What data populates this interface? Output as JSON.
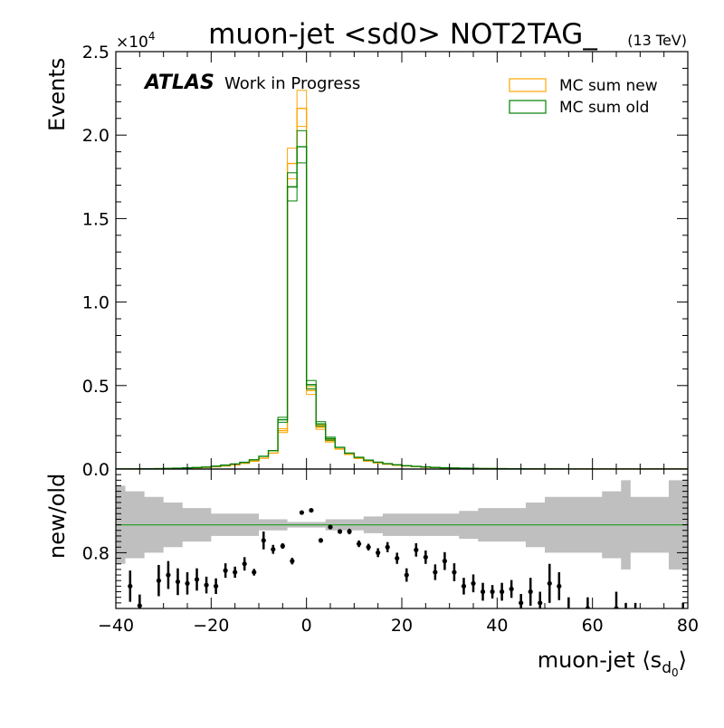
{
  "chart_data": [
    {
      "type": "histogram",
      "title": "muon-jet <sd0> NOT2TAG_",
      "energy_label": "(13 TeV)",
      "brand": {
        "experiment": "ATLAS",
        "status": "Work in Progress"
      },
      "xlabel": "muon-jet ⟨s",
      "xlabel_sub": "d",
      "xlabel_subsub": "0",
      "xlabel_close": "⟩",
      "ylabel": "Events",
      "y_multiplier": "×10",
      "y_multiplier_exp": "4",
      "xlim": [
        -40,
        80
      ],
      "ylim": [
        0,
        25000
      ],
      "x_ticks": [
        -40,
        -20,
        0,
        20,
        40,
        60,
        80
      ],
      "x_tick_labels": [
        "−40",
        "−20",
        "0",
        "20",
        "40",
        "60",
        "80"
      ],
      "y_ticks": [
        0,
        5000,
        10000,
        15000,
        20000,
        25000
      ],
      "y_tick_labels": [
        "0.0",
        "0.5",
        "1.0",
        "1.5",
        "2.0",
        "2.5"
      ],
      "legend_position": "top-right",
      "bin_edges": [
        -40,
        -38,
        -36,
        -34,
        -32,
        -30,
        -28,
        -26,
        -24,
        -22,
        -20,
        -18,
        -16,
        -14,
        -12,
        -10,
        -8,
        -6,
        -4,
        -2,
        0,
        2,
        4,
        6,
        8,
        10,
        12,
        14,
        16,
        18,
        20,
        22,
        24,
        26,
        28,
        30,
        32,
        34,
        36,
        38,
        40,
        42,
        44,
        46,
        48,
        50,
        52,
        54,
        56,
        58,
        60,
        62,
        64,
        66,
        68,
        70,
        72,
        74,
        76,
        78,
        80
      ],
      "series": [
        {
          "name": "MC sum new",
          "color": "#ffa500",
          "values": [
            6,
            8,
            10,
            15,
            20,
            30,
            40,
            55,
            75,
            100,
            140,
            190,
            250,
            340,
            470,
            650,
            950,
            2300,
            18300,
            21600,
            4700,
            2500,
            1700,
            1200,
            880,
            640,
            480,
            370,
            290,
            230,
            180,
            145,
            115,
            90,
            72,
            58,
            46,
            37,
            30,
            24,
            20,
            16,
            13,
            11,
            9,
            7,
            6,
            5,
            4,
            3,
            3,
            2,
            2,
            2,
            1,
            1,
            1,
            1,
            1,
            1
          ]
        },
        {
          "name": "MC sum old",
          "color": "#008000",
          "values": [
            8,
            10,
            13,
            18,
            25,
            36,
            50,
            68,
            90,
            120,
            170,
            230,
            300,
            400,
            550,
            760,
            1100,
            2950,
            16900,
            19300,
            5050,
            2700,
            1820,
            1300,
            950,
            700,
            530,
            410,
            320,
            255,
            200,
            160,
            128,
            100,
            80,
            64,
            51,
            41,
            33,
            27,
            22,
            18,
            15,
            12,
            10,
            8,
            7,
            6,
            5,
            4,
            3,
            3,
            2,
            2,
            2,
            1,
            1,
            1,
            1,
            1
          ]
        }
      ]
    },
    {
      "type": "scatter",
      "ylabel": "new/old",
      "xlim": [
        -40,
        80
      ],
      "ylim": [
        0.7,
        0.95
      ],
      "y_ticks": [
        0.8
      ],
      "y_tick_labels": [
        "0.8"
      ],
      "reference_line": 0.85,
      "reference_color": "#2ca02c",
      "band_color": "#bfbfbf",
      "band_upper": [
        0.92,
        0.91,
        0.91,
        0.9,
        0.9,
        0.89,
        0.89,
        0.88,
        0.88,
        0.88,
        0.87,
        0.87,
        0.87,
        0.87,
        0.87,
        0.86,
        0.86,
        0.86,
        0.855,
        0.855,
        0.855,
        0.855,
        0.86,
        0.86,
        0.86,
        0.86,
        0.865,
        0.865,
        0.87,
        0.87,
        0.87,
        0.87,
        0.87,
        0.87,
        0.87,
        0.87,
        0.875,
        0.875,
        0.88,
        0.88,
        0.88,
        0.88,
        0.88,
        0.89,
        0.89,
        0.9,
        0.9,
        0.9,
        0.9,
        0.9,
        0.9,
        0.91,
        0.91,
        0.93,
        0.9,
        0.9,
        0.9,
        0.9,
        0.93,
        0.93
      ],
      "band_lower": [
        0.78,
        0.79,
        0.79,
        0.8,
        0.8,
        0.81,
        0.81,
        0.82,
        0.82,
        0.82,
        0.83,
        0.83,
        0.83,
        0.83,
        0.83,
        0.84,
        0.84,
        0.84,
        0.845,
        0.845,
        0.845,
        0.845,
        0.84,
        0.84,
        0.84,
        0.84,
        0.835,
        0.835,
        0.83,
        0.83,
        0.83,
        0.83,
        0.83,
        0.83,
        0.83,
        0.83,
        0.825,
        0.825,
        0.82,
        0.82,
        0.82,
        0.82,
        0.82,
        0.81,
        0.81,
        0.8,
        0.8,
        0.8,
        0.8,
        0.8,
        0.8,
        0.79,
        0.79,
        0.77,
        0.8,
        0.8,
        0.8,
        0.8,
        0.77,
        0.77
      ],
      "points": [
        {
          "x": -37,
          "y": 0.74,
          "err": 0.028
        },
        {
          "x": -35,
          "y": 0.705,
          "err": 0.02
        },
        {
          "x": -31,
          "y": 0.75,
          "err": 0.028
        },
        {
          "x": -29,
          "y": 0.76,
          "err": 0.025
        },
        {
          "x": -27,
          "y": 0.748,
          "err": 0.024
        },
        {
          "x": -25,
          "y": 0.745,
          "err": 0.02
        },
        {
          "x": -23,
          "y": 0.752,
          "err": 0.02
        },
        {
          "x": -21,
          "y": 0.742,
          "err": 0.015
        },
        {
          "x": -19,
          "y": 0.74,
          "err": 0.014
        },
        {
          "x": -17,
          "y": 0.768,
          "err": 0.013
        },
        {
          "x": -15,
          "y": 0.765,
          "err": 0.01
        },
        {
          "x": -13,
          "y": 0.78,
          "err": 0.012
        },
        {
          "x": -11,
          "y": 0.765,
          "err": 0.006
        },
        {
          "x": -9,
          "y": 0.822,
          "err": 0.016
        },
        {
          "x": -7,
          "y": 0.806,
          "err": 0.008
        },
        {
          "x": -5,
          "y": 0.812,
          "err": 0.005
        },
        {
          "x": -3,
          "y": 0.785,
          "err": 0.006
        },
        {
          "x": -1,
          "y": 0.872,
          "err": 0.003
        },
        {
          "x": 1,
          "y": 0.876,
          "err": 0.003
        },
        {
          "x": 3,
          "y": 0.822,
          "err": 0.004
        },
        {
          "x": 5,
          "y": 0.846,
          "err": 0.004
        },
        {
          "x": 7,
          "y": 0.838,
          "err": 0.004
        },
        {
          "x": 9,
          "y": 0.838,
          "err": 0.005
        },
        {
          "x": 11,
          "y": 0.816,
          "err": 0.006
        },
        {
          "x": 13,
          "y": 0.81,
          "err": 0.006
        },
        {
          "x": 15,
          "y": 0.8,
          "err": 0.008
        },
        {
          "x": 17,
          "y": 0.81,
          "err": 0.009
        },
        {
          "x": 19,
          "y": 0.79,
          "err": 0.01
        },
        {
          "x": 21,
          "y": 0.76,
          "err": 0.012
        },
        {
          "x": 23,
          "y": 0.805,
          "err": 0.012
        },
        {
          "x": 25,
          "y": 0.792,
          "err": 0.012
        },
        {
          "x": 27,
          "y": 0.765,
          "err": 0.014
        },
        {
          "x": 29,
          "y": 0.785,
          "err": 0.016
        },
        {
          "x": 31,
          "y": 0.765,
          "err": 0.016
        },
        {
          "x": 33,
          "y": 0.74,
          "err": 0.015
        },
        {
          "x": 35,
          "y": 0.745,
          "err": 0.016
        },
        {
          "x": 37,
          "y": 0.73,
          "err": 0.016
        },
        {
          "x": 39,
          "y": 0.73,
          "err": 0.012
        },
        {
          "x": 41,
          "y": 0.73,
          "err": 0.016
        },
        {
          "x": 43,
          "y": 0.735,
          "err": 0.016
        },
        {
          "x": 45,
          "y": 0.71,
          "err": 0.016
        },
        {
          "x": 47,
          "y": 0.73,
          "err": 0.025
        },
        {
          "x": 49,
          "y": 0.71,
          "err": 0.02
        },
        {
          "x": 51,
          "y": 0.745,
          "err": 0.035
        },
        {
          "x": 53,
          "y": 0.74,
          "err": 0.025
        },
        {
          "x": 55,
          "y": 0.69,
          "err": 0.03
        },
        {
          "x": 59,
          "y": 0.7,
          "err": 0.02
        },
        {
          "x": 65,
          "y": 0.7,
          "err": 0.03
        },
        {
          "x": 67,
          "y": 0.69,
          "err": 0.02
        },
        {
          "x": 69,
          "y": 0.69,
          "err": 0.02
        },
        {
          "x": 79,
          "y": 0.69,
          "err": 0.02
        }
      ]
    }
  ]
}
